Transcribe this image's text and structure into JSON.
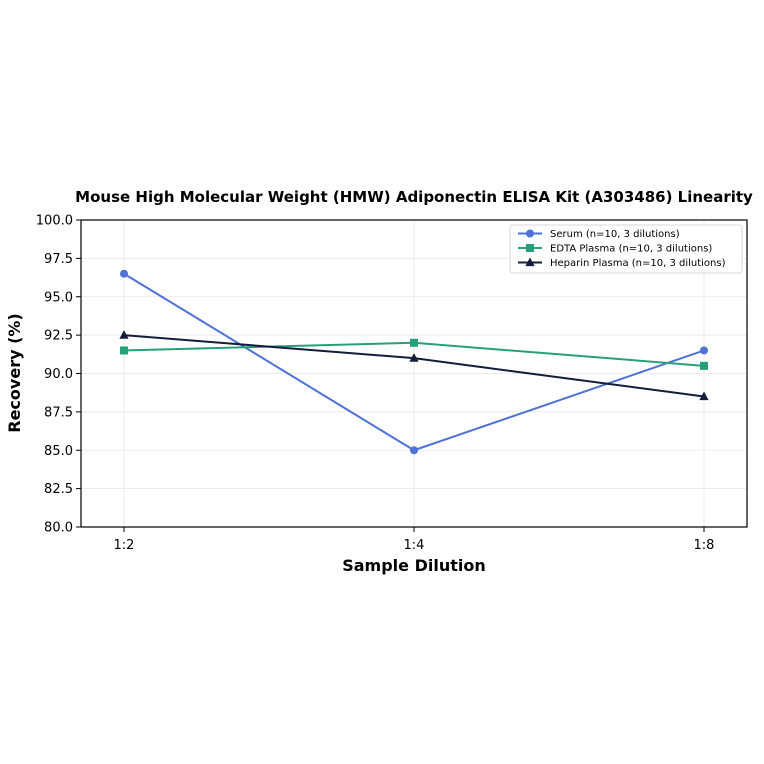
{
  "chart_data": {
    "type": "line",
    "title": "Mouse High Molecular Weight (HMW) Adiponectin ELISA Kit (A303486) Linearity",
    "xlabel": "Sample Dilution",
    "ylabel": "Recovery (%)",
    "categories": [
      "1:2",
      "1:4",
      "1:8"
    ],
    "ylim": [
      80.0,
      100.0
    ],
    "yticks": [
      "80.0",
      "82.5",
      "85.0",
      "87.5",
      "90.0",
      "92.5",
      "95.0",
      "97.5",
      "100.0"
    ],
    "grid": true,
    "legend_position": "top-right",
    "series": [
      {
        "name": "Serum (n=10, 3 dilutions)",
        "values": [
          96.5,
          85.0,
          91.5
        ],
        "color": "#4e72d6",
        "marker": "circle"
      },
      {
        "name": "EDTA Plasma (n=10, 3 dilutions)",
        "values": [
          91.5,
          92.0,
          90.5
        ],
        "color": "#27a07a",
        "marker": "square"
      },
      {
        "name": "Heparin Plasma (n=10, 3 dilutions)",
        "values": [
          92.5,
          91.0,
          88.5
        ],
        "color": "#131d3b",
        "marker": "triangle"
      }
    ]
  }
}
